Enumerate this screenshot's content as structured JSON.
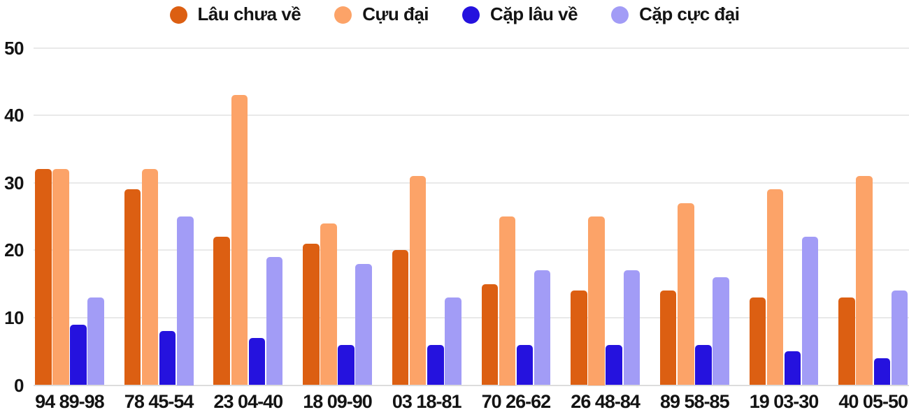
{
  "page": {
    "background_color": "#ffffff",
    "text_color": "#131313",
    "gridline_color": "#e9e9e9"
  },
  "chart_data": {
    "type": "bar",
    "title": "",
    "xlabel": "",
    "ylabel": "",
    "categories": [
      "94 89-98",
      "78 45-54",
      "23 04-40",
      "18 09-90",
      "03 18-81",
      "70 26-62",
      "26 48-84",
      "89 58-85",
      "19 03-30",
      "40 05-50"
    ],
    "series": [
      {
        "name": "Lâu chưa về",
        "color": "#dc5f12",
        "values": [
          32,
          29,
          22,
          21,
          20,
          15,
          14,
          14,
          13,
          13
        ]
      },
      {
        "name": "Cựu đại",
        "color": "#fca368",
        "values": [
          32,
          32,
          43,
          24,
          31,
          25,
          25,
          27,
          29,
          31
        ]
      },
      {
        "name": "Cặp lâu về",
        "color": "#2512de",
        "values": [
          9,
          8,
          7,
          6,
          6,
          6,
          6,
          6,
          5,
          4
        ]
      },
      {
        "name": "Cặp cực đại",
        "color": "#a29cf6",
        "values": [
          13,
          25,
          19,
          18,
          13,
          17,
          17,
          16,
          22,
          14
        ]
      }
    ],
    "ylim": [
      0,
      50
    ],
    "yticks": [
      0,
      10,
      20,
      30,
      40,
      50
    ],
    "grid": true,
    "legend_position": "top"
  }
}
